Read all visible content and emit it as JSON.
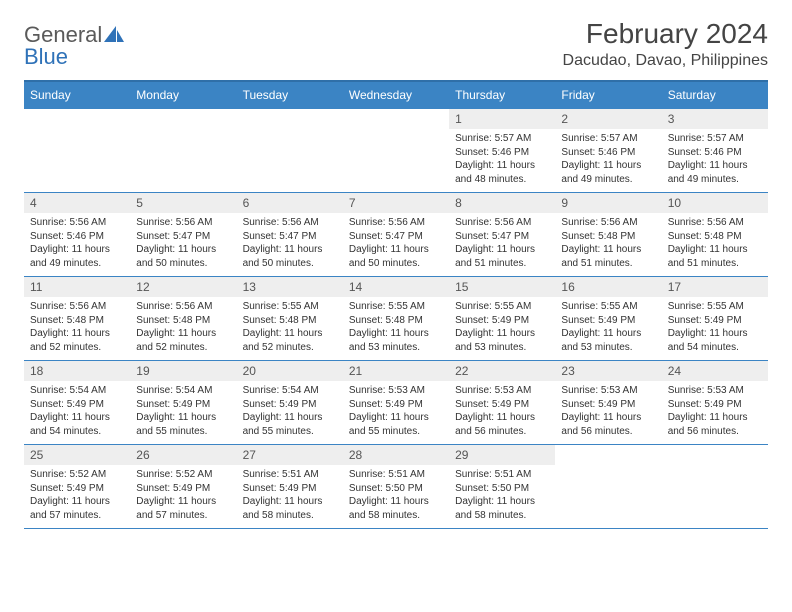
{
  "logo": {
    "text1": "General",
    "text2": "Blue"
  },
  "title": "February 2024",
  "location": "Dacudao, Davao, Philippines",
  "colors": {
    "header_bg": "#3b84c4",
    "header_text": "#ffffff",
    "grid_line": "#3b84c4",
    "daynum_bg": "#eeeeee",
    "body_text": "#333333",
    "logo_gray": "#5a5a5a",
    "logo_blue": "#2f72b8"
  },
  "weekdays": [
    "Sunday",
    "Monday",
    "Tuesday",
    "Wednesday",
    "Thursday",
    "Friday",
    "Saturday"
  ],
  "weeks": [
    [
      null,
      null,
      null,
      null,
      {
        "n": "1",
        "sr": "5:57 AM",
        "ss": "5:46 PM",
        "dl": "11 hours and 48 minutes."
      },
      {
        "n": "2",
        "sr": "5:57 AM",
        "ss": "5:46 PM",
        "dl": "11 hours and 49 minutes."
      },
      {
        "n": "3",
        "sr": "5:57 AM",
        "ss": "5:46 PM",
        "dl": "11 hours and 49 minutes."
      }
    ],
    [
      {
        "n": "4",
        "sr": "5:56 AM",
        "ss": "5:46 PM",
        "dl": "11 hours and 49 minutes."
      },
      {
        "n": "5",
        "sr": "5:56 AM",
        "ss": "5:47 PM",
        "dl": "11 hours and 50 minutes."
      },
      {
        "n": "6",
        "sr": "5:56 AM",
        "ss": "5:47 PM",
        "dl": "11 hours and 50 minutes."
      },
      {
        "n": "7",
        "sr": "5:56 AM",
        "ss": "5:47 PM",
        "dl": "11 hours and 50 minutes."
      },
      {
        "n": "8",
        "sr": "5:56 AM",
        "ss": "5:47 PM",
        "dl": "11 hours and 51 minutes."
      },
      {
        "n": "9",
        "sr": "5:56 AM",
        "ss": "5:48 PM",
        "dl": "11 hours and 51 minutes."
      },
      {
        "n": "10",
        "sr": "5:56 AM",
        "ss": "5:48 PM",
        "dl": "11 hours and 51 minutes."
      }
    ],
    [
      {
        "n": "11",
        "sr": "5:56 AM",
        "ss": "5:48 PM",
        "dl": "11 hours and 52 minutes."
      },
      {
        "n": "12",
        "sr": "5:56 AM",
        "ss": "5:48 PM",
        "dl": "11 hours and 52 minutes."
      },
      {
        "n": "13",
        "sr": "5:55 AM",
        "ss": "5:48 PM",
        "dl": "11 hours and 52 minutes."
      },
      {
        "n": "14",
        "sr": "5:55 AM",
        "ss": "5:48 PM",
        "dl": "11 hours and 53 minutes."
      },
      {
        "n": "15",
        "sr": "5:55 AM",
        "ss": "5:49 PM",
        "dl": "11 hours and 53 minutes."
      },
      {
        "n": "16",
        "sr": "5:55 AM",
        "ss": "5:49 PM",
        "dl": "11 hours and 53 minutes."
      },
      {
        "n": "17",
        "sr": "5:55 AM",
        "ss": "5:49 PM",
        "dl": "11 hours and 54 minutes."
      }
    ],
    [
      {
        "n": "18",
        "sr": "5:54 AM",
        "ss": "5:49 PM",
        "dl": "11 hours and 54 minutes."
      },
      {
        "n": "19",
        "sr": "5:54 AM",
        "ss": "5:49 PM",
        "dl": "11 hours and 55 minutes."
      },
      {
        "n": "20",
        "sr": "5:54 AM",
        "ss": "5:49 PM",
        "dl": "11 hours and 55 minutes."
      },
      {
        "n": "21",
        "sr": "5:53 AM",
        "ss": "5:49 PM",
        "dl": "11 hours and 55 minutes."
      },
      {
        "n": "22",
        "sr": "5:53 AM",
        "ss": "5:49 PM",
        "dl": "11 hours and 56 minutes."
      },
      {
        "n": "23",
        "sr": "5:53 AM",
        "ss": "5:49 PM",
        "dl": "11 hours and 56 minutes."
      },
      {
        "n": "24",
        "sr": "5:53 AM",
        "ss": "5:49 PM",
        "dl": "11 hours and 56 minutes."
      }
    ],
    [
      {
        "n": "25",
        "sr": "5:52 AM",
        "ss": "5:49 PM",
        "dl": "11 hours and 57 minutes."
      },
      {
        "n": "26",
        "sr": "5:52 AM",
        "ss": "5:49 PM",
        "dl": "11 hours and 57 minutes."
      },
      {
        "n": "27",
        "sr": "5:51 AM",
        "ss": "5:49 PM",
        "dl": "11 hours and 58 minutes."
      },
      {
        "n": "28",
        "sr": "5:51 AM",
        "ss": "5:50 PM",
        "dl": "11 hours and 58 minutes."
      },
      {
        "n": "29",
        "sr": "5:51 AM",
        "ss": "5:50 PM",
        "dl": "11 hours and 58 minutes."
      },
      null,
      null
    ]
  ],
  "labels": {
    "sunrise": "Sunrise: ",
    "sunset": "Sunset: ",
    "daylight": "Daylight: "
  }
}
